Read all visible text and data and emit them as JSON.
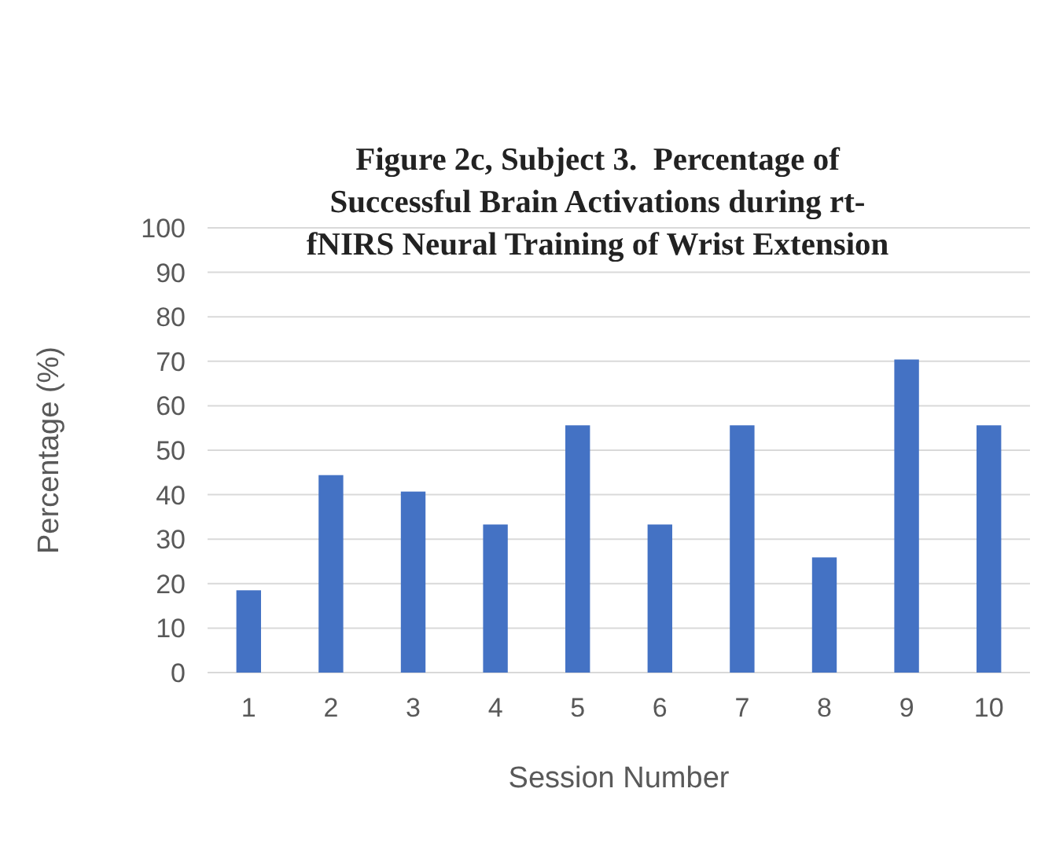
{
  "chart_data": {
    "type": "bar",
    "title": "Figure 2c, Subject 3.  Percentage of\nSuccessful Brain Activations during rt-\nfNIRS Neural Training of Wrist Extension",
    "xlabel": "Session Number",
    "ylabel": "Percentage (%)",
    "categories": [
      "1",
      "2",
      "3",
      "4",
      "5",
      "6",
      "7",
      "8",
      "9",
      "10"
    ],
    "values": [
      18.5,
      44.4,
      40.7,
      33.3,
      55.6,
      33.3,
      55.6,
      25.9,
      70.4,
      55.6
    ],
    "color": "#4472c4",
    "ylim": [
      0,
      100
    ],
    "yticks": [
      0,
      10,
      20,
      30,
      40,
      50,
      60,
      70,
      80,
      90,
      100
    ],
    "grid": "y"
  }
}
